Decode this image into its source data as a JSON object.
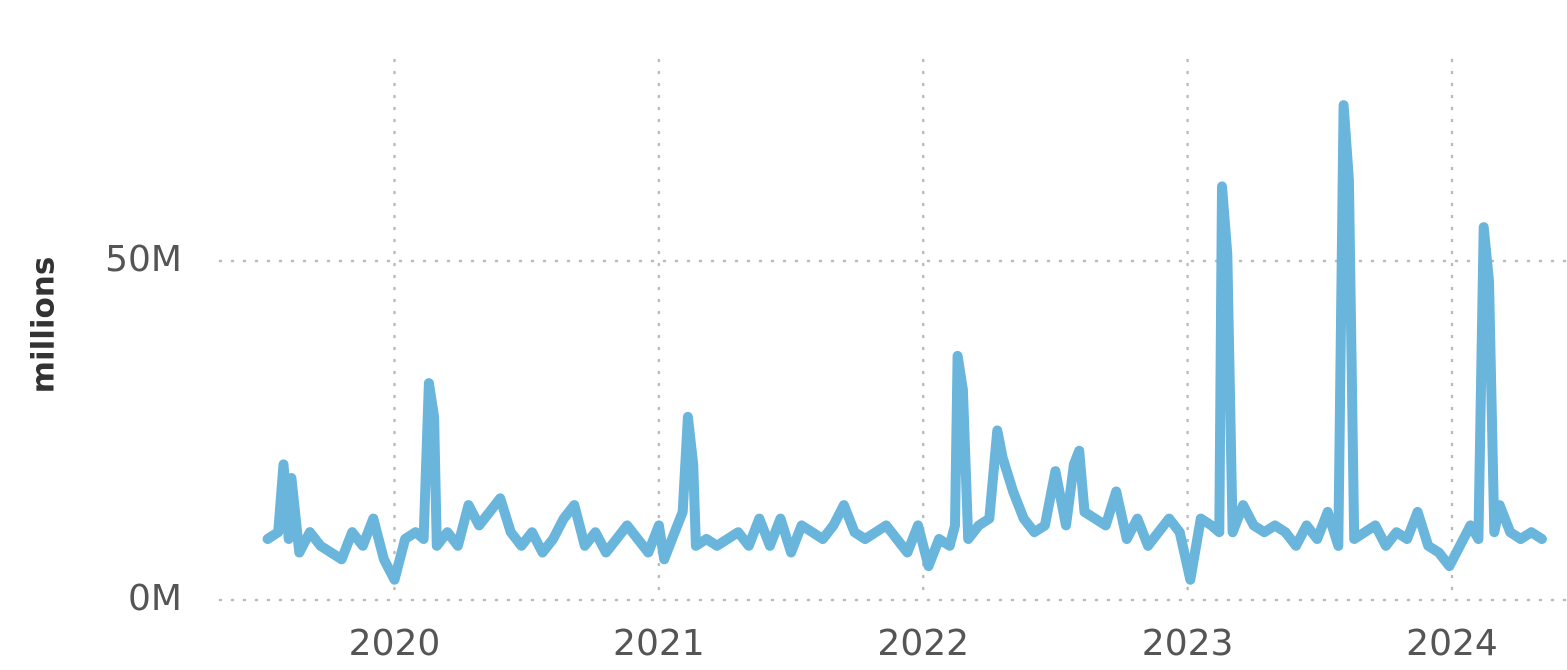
{
  "chart_data": {
    "type": "line",
    "y_label": "millions",
    "x": [
      2019.52,
      2019.56,
      2019.58,
      2019.6,
      2019.61,
      2019.64,
      2019.68,
      2019.72,
      2019.76,
      2019.8,
      2019.84,
      2019.88,
      2019.92,
      2019.96,
      2020.0,
      2020.04,
      2020.08,
      2020.11,
      2020.13,
      2020.15,
      2020.16,
      2020.2,
      2020.24,
      2020.28,
      2020.32,
      2020.36,
      2020.4,
      2020.44,
      2020.48,
      2020.52,
      2020.56,
      2020.6,
      2020.64,
      2020.68,
      2020.72,
      2020.76,
      2020.8,
      2020.84,
      2020.88,
      2020.92,
      2020.96,
      2021.0,
      2021.02,
      2021.06,
      2021.09,
      2021.11,
      2021.13,
      2021.14,
      2021.18,
      2021.22,
      2021.26,
      2021.3,
      2021.34,
      2021.38,
      2021.42,
      2021.46,
      2021.5,
      2021.54,
      2021.58,
      2021.62,
      2021.66,
      2021.7,
      2021.74,
      2021.78,
      2021.82,
      2021.86,
      2021.9,
      2021.94,
      2021.98,
      2022.02,
      2022.06,
      2022.1,
      2022.12,
      2022.13,
      2022.15,
      2022.17,
      2022.21,
      2022.25,
      2022.28,
      2022.3,
      2022.34,
      2022.38,
      2022.42,
      2022.46,
      2022.5,
      2022.54,
      2022.57,
      2022.59,
      2022.61,
      2022.65,
      2022.69,
      2022.73,
      2022.77,
      2022.81,
      2022.85,
      2022.89,
      2022.93,
      2022.97,
      2023.01,
      2023.05,
      2023.09,
      2023.12,
      2023.13,
      2023.15,
      2023.17,
      2023.21,
      2023.25,
      2023.29,
      2023.33,
      2023.37,
      2023.41,
      2023.45,
      2023.49,
      2023.53,
      2023.57,
      2023.59,
      2023.61,
      2023.63,
      2023.67,
      2023.71,
      2023.75,
      2023.79,
      2023.83,
      2023.87,
      2023.91,
      2023.95,
      2023.99,
      2024.03,
      2024.07,
      2024.1,
      2024.12,
      2024.14,
      2024.16,
      2024.18,
      2024.22,
      2024.26,
      2024.3,
      2024.34
    ],
    "series": [
      {
        "color": "#69b5dc",
        "values": [
          9,
          10,
          20,
          9,
          18,
          7,
          10,
          8,
          7,
          6,
          10,
          8,
          12,
          6,
          3,
          9,
          10,
          9,
          32,
          27,
          8,
          10,
          8,
          14,
          11,
          13,
          15,
          10,
          8,
          10,
          7,
          9,
          12,
          14,
          8,
          10,
          7,
          9,
          11,
          9,
          7,
          11,
          6,
          10,
          13,
          27,
          20,
          8,
          9,
          8,
          9,
          10,
          8,
          12,
          8,
          12,
          7,
          11,
          10,
          9,
          11,
          14,
          10,
          9,
          10,
          11,
          9,
          7,
          11,
          5,
          9,
          8,
          11,
          36,
          31,
          9,
          11,
          12,
          25,
          21,
          16,
          12,
          10,
          11,
          19,
          11,
          20,
          22,
          13,
          12,
          11,
          16,
          9,
          12,
          8,
          10,
          12,
          10,
          3,
          12,
          11,
          10,
          61,
          51,
          10,
          14,
          11,
          10,
          11,
          10,
          8,
          11,
          9,
          13,
          8,
          73,
          62,
          9,
          10,
          11,
          8,
          10,
          9,
          13,
          8,
          7,
          5,
          8,
          11,
          9,
          55,
          47,
          10,
          14,
          10,
          9,
          10,
          9
        ]
      }
    ],
    "xlim": [
      2019.34,
      2024.435
    ],
    "xticks": [
      2020,
      2021,
      2022,
      2023,
      2024
    ],
    "ylim": [
      0,
      88.5
    ],
    "yticks": [
      {
        "value": 0,
        "label": "0M"
      },
      {
        "value": 50,
        "label": "50M"
      }
    ],
    "grid": true
  }
}
